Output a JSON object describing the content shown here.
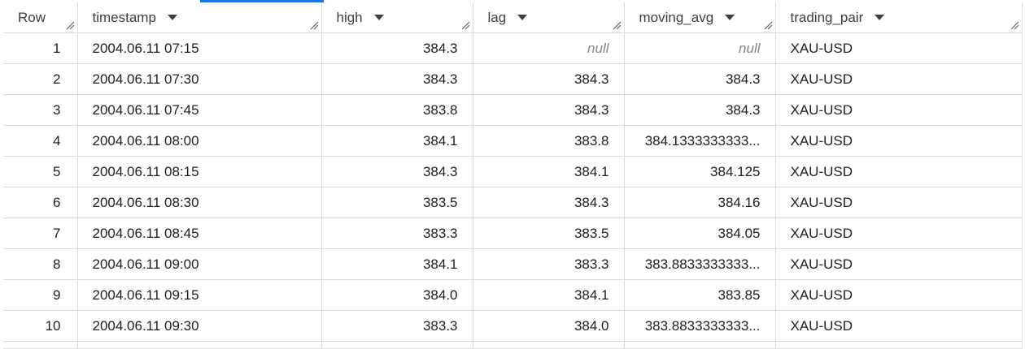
{
  "columns": [
    {
      "label": "Row",
      "sortable": false
    },
    {
      "label": "timestamp",
      "sortable": true
    },
    {
      "label": "high",
      "sortable": true
    },
    {
      "label": "lag",
      "sortable": true
    },
    {
      "label": "moving_avg",
      "sortable": true
    },
    {
      "label": "trading_pair",
      "sortable": true
    }
  ],
  "rows": [
    {
      "row": "1",
      "timestamp": "2004.06.11 07:15",
      "high": "384.3",
      "lag": "null",
      "moving_avg": "null",
      "trading_pair": "XAU-USD"
    },
    {
      "row": "2",
      "timestamp": "2004.06.11 07:30",
      "high": "384.3",
      "lag": "384.3",
      "moving_avg": "384.3",
      "trading_pair": "XAU-USD"
    },
    {
      "row": "3",
      "timestamp": "2004.06.11 07:45",
      "high": "383.8",
      "lag": "384.3",
      "moving_avg": "384.3",
      "trading_pair": "XAU-USD"
    },
    {
      "row": "4",
      "timestamp": "2004.06.11 08:00",
      "high": "384.1",
      "lag": "383.8",
      "moving_avg": "384.1333333333...",
      "trading_pair": "XAU-USD"
    },
    {
      "row": "5",
      "timestamp": "2004.06.11 08:15",
      "high": "384.3",
      "lag": "384.1",
      "moving_avg": "384.125",
      "trading_pair": "XAU-USD"
    },
    {
      "row": "6",
      "timestamp": "2004.06.11 08:30",
      "high": "383.5",
      "lag": "384.3",
      "moving_avg": "384.16",
      "trading_pair": "XAU-USD"
    },
    {
      "row": "7",
      "timestamp": "2004.06.11 08:45",
      "high": "383.3",
      "lag": "383.5",
      "moving_avg": "384.05",
      "trading_pair": "XAU-USD"
    },
    {
      "row": "8",
      "timestamp": "2004.06.11 09:00",
      "high": "384.1",
      "lag": "383.3",
      "moving_avg": "383.8833333333...",
      "trading_pair": "XAU-USD"
    },
    {
      "row": "9",
      "timestamp": "2004.06.11 09:15",
      "high": "384.0",
      "lag": "384.1",
      "moving_avg": "383.85",
      "trading_pair": "XAU-USD"
    },
    {
      "row": "10",
      "timestamp": "2004.06.11 09:30",
      "high": "383.3",
      "lag": "384.0",
      "moving_avg": "383.8833333333...",
      "trading_pair": "XAU-USD"
    }
  ],
  "colors": {
    "accent": "#1a73e8",
    "grid": "#dadce0",
    "null_text": "#80868b"
  }
}
